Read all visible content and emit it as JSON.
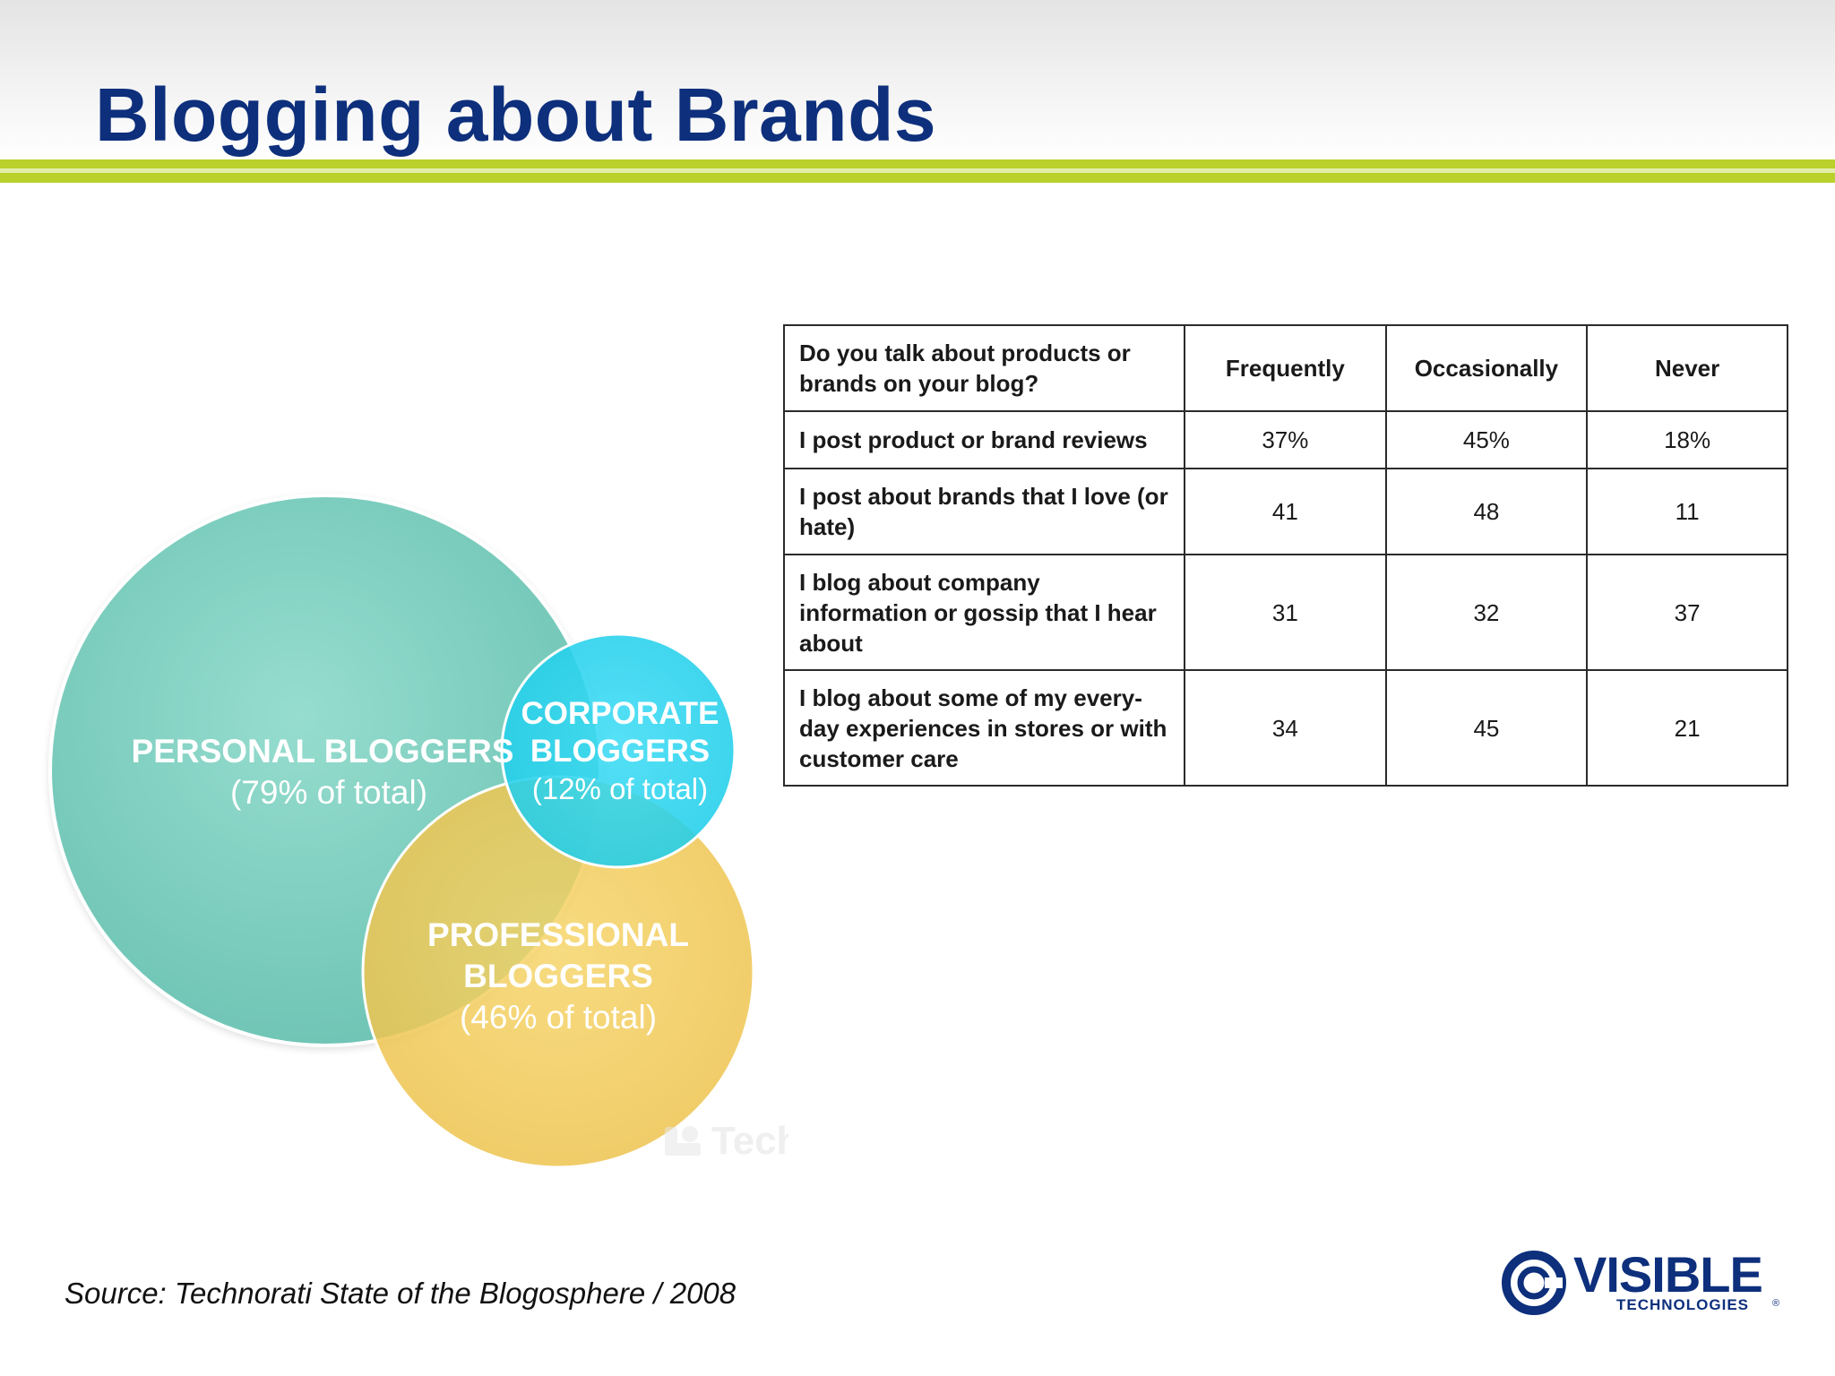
{
  "title": "Blogging about Brands",
  "venn": {
    "sets": [
      {
        "label_line1": "PERSONAL BLOGGERS",
        "label_line2": "(79% of total)",
        "color": "#7fd3c4"
      },
      {
        "label_line1": "CORPORATE",
        "label_line1b": "BLOGGERS",
        "label_line2": "(12% of total)",
        "color": "#29d7f2"
      },
      {
        "label_line1": "PROFESSIONAL",
        "label_line1b": "BLOGGERS",
        "label_line2": "(46% of total)",
        "color": "#f3cc58"
      }
    ],
    "watermark": "Technorati"
  },
  "table": {
    "question": "Do you talk about products or brands on your blog?",
    "columns": [
      "Frequently",
      "Occasionally",
      "Never"
    ],
    "rows": [
      {
        "label": "I post product or brand reviews",
        "values": [
          "37%",
          "45%",
          "18%"
        ]
      },
      {
        "label": "I post about brands that I love (or hate)",
        "values": [
          "41",
          "48",
          "11"
        ]
      },
      {
        "label": "I blog about company information or gossip that I hear about",
        "values": [
          "31",
          "32",
          "37"
        ]
      },
      {
        "label": "I blog about some of my every-day experiences in stores or with customer care",
        "values": [
          "34",
          "45",
          "21"
        ]
      }
    ]
  },
  "source": "Source: Technorati State of the Blogosphere / 2008",
  "logo": {
    "name": "VISIBLE",
    "sub": "TECHNOLOGIES",
    "mark": "®",
    "color": "#0d2f7c"
  }
}
